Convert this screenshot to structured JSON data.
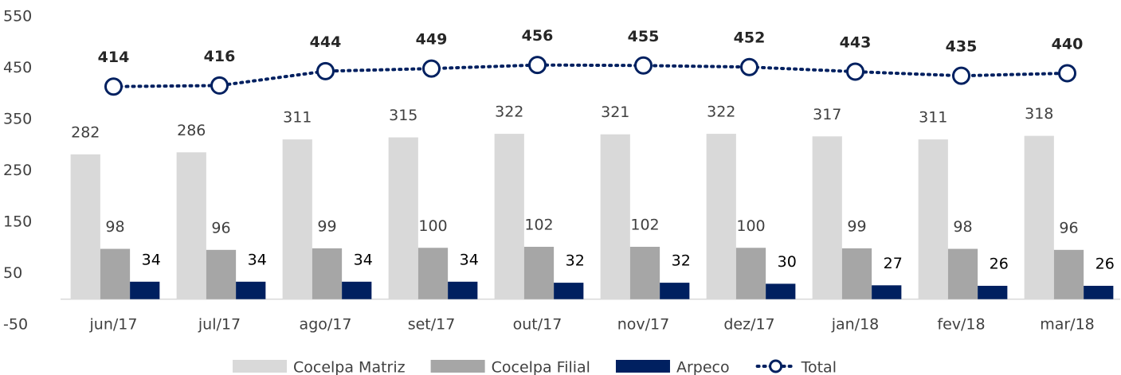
{
  "chart_data": {
    "type": "bar",
    "categories": [
      "jun/17",
      "jul/17",
      "ago/17",
      "set/17",
      "out/17",
      "nov/17",
      "dez/17",
      "jan/18",
      "fev/18",
      "mar/18"
    ],
    "series": [
      {
        "name": "Cocelpa Matriz",
        "color": "#d9d9d9",
        "values": [
          282,
          286,
          311,
          315,
          322,
          321,
          322,
          317,
          311,
          318
        ]
      },
      {
        "name": "Cocelpa Filial",
        "color": "#a6a6a6",
        "values": [
          98,
          96,
          99,
          100,
          102,
          102,
          100,
          99,
          98,
          96
        ]
      },
      {
        "name": "Arpeco",
        "color": "#002060",
        "values": [
          34,
          34,
          34,
          34,
          32,
          32,
          30,
          27,
          26,
          26
        ]
      },
      {
        "name": "Total",
        "color": "#002060",
        "type": "line",
        "values": [
          414,
          416,
          444,
          449,
          456,
          455,
          452,
          443,
          435,
          440
        ]
      }
    ],
    "ylim": [
      -50,
      550
    ],
    "yticks": [
      -50,
      50,
      150,
      250,
      350,
      450,
      550
    ]
  }
}
